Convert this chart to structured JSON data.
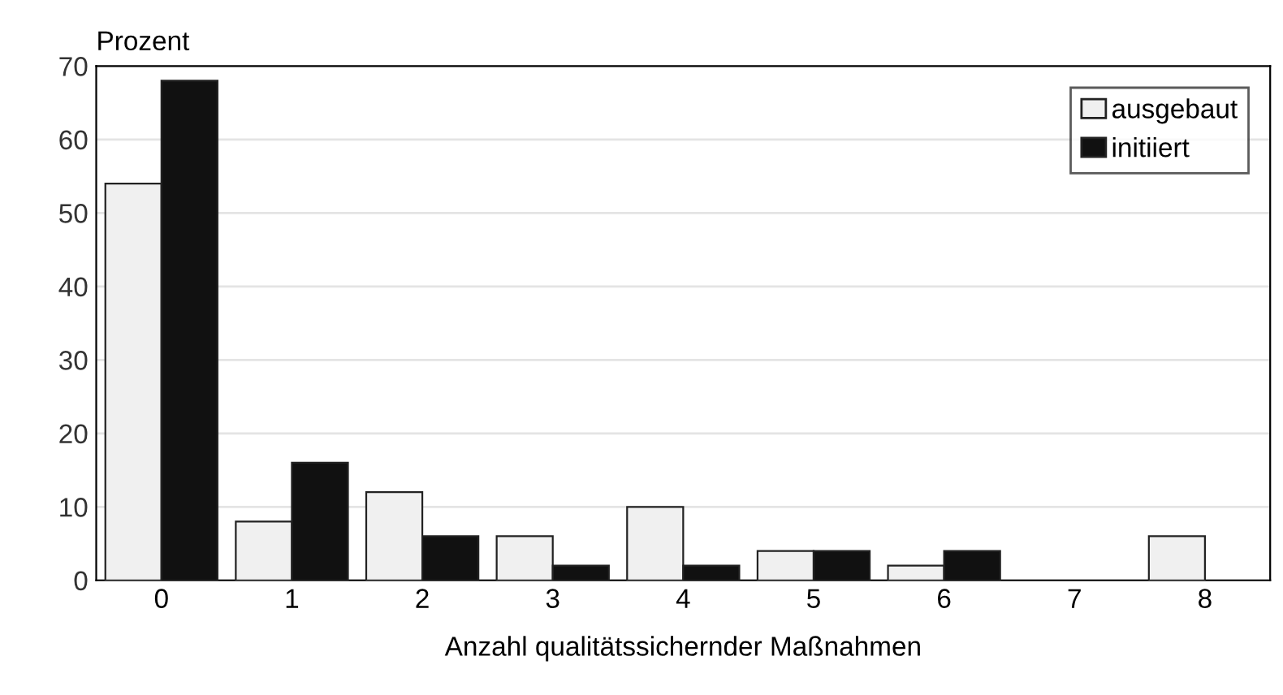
{
  "chart_data": {
    "type": "bar",
    "ylabel": "Prozent",
    "xlabel": "Anzahl qualitätssichernder Maßnahmen",
    "categories": [
      "0",
      "1",
      "2",
      "3",
      "4",
      "5",
      "6",
      "7",
      "8"
    ],
    "series": [
      {
        "name": "ausgebaut",
        "color": "#f0f0f0",
        "values": [
          54,
          8,
          12,
          6,
          10,
          4,
          2,
          0,
          6
        ]
      },
      {
        "name": "initiiert",
        "color": "#111111",
        "values": [
          68,
          16,
          6,
          2,
          2,
          4,
          4,
          0,
          0
        ]
      }
    ],
    "ylim": [
      0,
      70
    ],
    "yticks": [
      0,
      10,
      20,
      30,
      40,
      50,
      60,
      70
    ],
    "grid": "y",
    "legend": "top right"
  }
}
